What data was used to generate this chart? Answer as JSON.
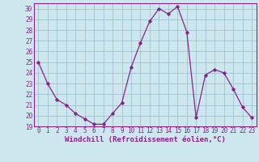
{
  "x": [
    0,
    1,
    2,
    3,
    4,
    5,
    6,
    7,
    8,
    9,
    10,
    11,
    12,
    13,
    14,
    15,
    16,
    17,
    18,
    19,
    20,
    21,
    22,
    23
  ],
  "y": [
    25,
    23,
    21.5,
    21,
    20.2,
    19.7,
    19.2,
    19.2,
    20.2,
    21.2,
    24.5,
    26.8,
    28.8,
    30.0,
    29.5,
    30.2,
    27.8,
    19.8,
    23.8,
    24.3,
    24.0,
    22.5,
    20.8,
    19.8
  ],
  "line_color": "#882288",
  "marker": "D",
  "marker_size": 1.8,
  "bg_color": "#cce8ee",
  "grid_color": "#99bbcc",
  "xlabel": "Windchill (Refroidissement éolien,°C)",
  "ylim": [
    19,
    30.5
  ],
  "xlim": [
    -0.5,
    23.5
  ],
  "yticks": [
    19,
    20,
    21,
    22,
    23,
    24,
    25,
    26,
    27,
    28,
    29,
    30
  ],
  "xticks": [
    0,
    1,
    2,
    3,
    4,
    5,
    6,
    7,
    8,
    9,
    10,
    11,
    12,
    13,
    14,
    15,
    16,
    17,
    18,
    19,
    20,
    21,
    22,
    23
  ],
  "xlabel_fontsize": 6.5,
  "tick_fontsize": 5.5,
  "line_width": 0.9
}
